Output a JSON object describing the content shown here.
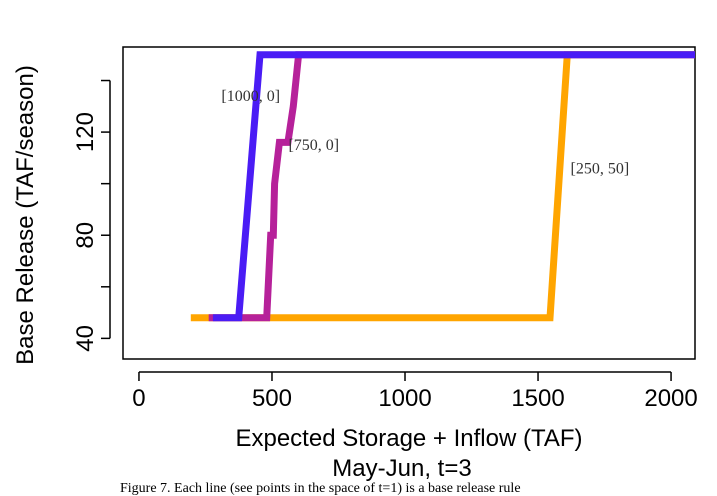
{
  "chart_data": {
    "type": "line",
    "title": "",
    "subtitle": "May-Jun, t=3",
    "xlabel": "Expected Storage + Inflow (TAF)",
    "ylabel": "Base Release (TAF/season)",
    "xlim": [
      -60,
      2090
    ],
    "ylim": [
      32,
      153
    ],
    "xticks": [
      0,
      500,
      1000,
      1500,
      2000
    ],
    "xtick_labels": [
      "0",
      "500",
      "1000",
      "1500",
      "2000"
    ],
    "yticks": [
      40,
      60,
      80,
      100,
      120,
      140
    ],
    "ytick_labels": [
      "40",
      "",
      "80",
      "",
      "120",
      ""
    ],
    "grid": false,
    "legend": "none",
    "series": [
      {
        "name": "[250, 50]",
        "color": "#ffa500",
        "x": [
          195,
          1545,
          1610,
          2090
        ],
        "y": [
          48,
          48,
          150,
          150
        ]
      },
      {
        "name": "[750, 0]",
        "color": "#b6219a",
        "x": [
          262,
          480,
          495,
          505,
          510,
          528,
          560,
          580,
          600,
          2090
        ],
        "y": [
          48,
          48,
          80,
          80,
          100,
          116,
          116,
          130,
          150,
          150
        ]
      },
      {
        "name": "[1000, 0]",
        "color": "#4a1cf5",
        "x": [
          278,
          375,
          455,
          2090
        ],
        "y": [
          48,
          48,
          150,
          150
        ]
      }
    ],
    "annotations": [
      {
        "text": "[1000, 0]",
        "x": 310,
        "y": 132
      },
      {
        "text": "[750, 0]",
        "x": 562,
        "y": 113
      },
      {
        "text": "[250, 50]",
        "x": 1622,
        "y": 104
      }
    ]
  },
  "caption": "Figure 7. Each line (see points in the space of t=1) is a base release rule"
}
